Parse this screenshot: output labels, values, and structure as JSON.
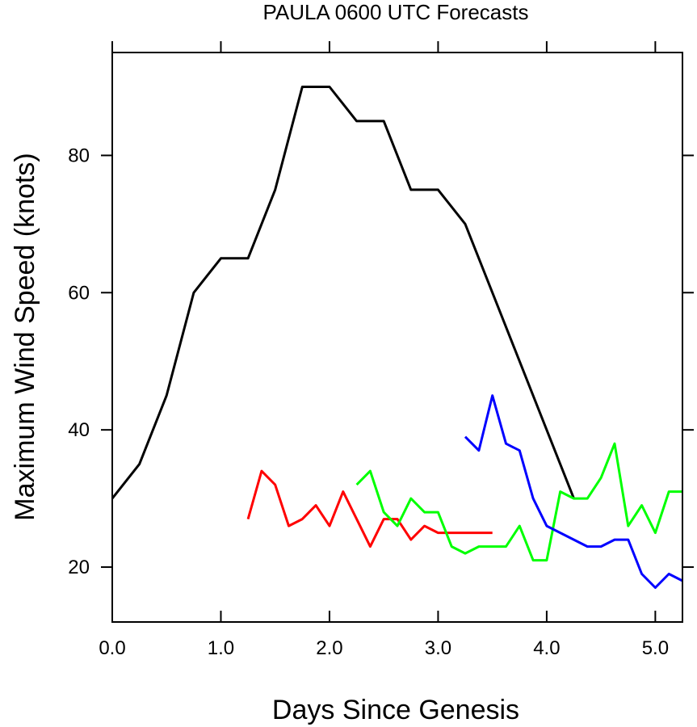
{
  "chart_data": {
    "type": "line",
    "title": "PAULA 0600 UTC Forecasts",
    "xlabel": "Days Since Genesis",
    "ylabel": "Maximum Wind Speed (knots)",
    "xlim": [
      0,
      5.25
    ],
    "ylim": [
      12,
      95
    ],
    "x_ticks": [
      0,
      1,
      2,
      3,
      4,
      5
    ],
    "x_tick_labels": [
      "0.0",
      "1.0",
      "2.0",
      "3.0",
      "4.0",
      "5.0"
    ],
    "y_ticks": [
      20,
      40,
      60,
      80
    ],
    "y_tick_labels": [
      "20",
      "40",
      "60",
      "80"
    ],
    "series": [
      {
        "name": "black",
        "color": "#000000",
        "x": [
          0,
          0.25,
          0.5,
          0.75,
          1.0,
          1.25,
          1.5,
          1.75,
          2.0,
          2.25,
          2.5,
          2.75,
          3.0,
          3.25,
          3.5,
          3.75,
          4.0,
          4.25
        ],
        "y": [
          30,
          35,
          45,
          60,
          65,
          65,
          75,
          90,
          90,
          85,
          85,
          75,
          75,
          70,
          60,
          50,
          40,
          30
        ]
      },
      {
        "name": "red",
        "color": "#ff0000",
        "x": [
          1.25,
          1.375,
          1.5,
          1.625,
          1.75,
          1.875,
          2.0,
          2.125,
          2.25,
          2.375,
          2.5,
          2.625,
          2.75,
          2.875,
          3.0,
          3.125,
          3.25,
          3.375,
          3.5
        ],
        "y": [
          27,
          34,
          32,
          26,
          27,
          29,
          26,
          31,
          27,
          23,
          27,
          27,
          24,
          26,
          25,
          25,
          25,
          25,
          25
        ]
      },
      {
        "name": "green",
        "color": "#00ff00",
        "x": [
          2.25,
          2.375,
          2.5,
          2.625,
          2.75,
          2.875,
          3.0,
          3.125,
          3.25,
          3.375,
          3.5,
          3.625,
          3.75,
          3.875,
          4.0,
          4.125,
          4.25,
          4.375,
          4.5,
          4.625,
          4.75,
          4.875,
          5.0,
          5.125,
          5.25
        ],
        "y": [
          32,
          34,
          28,
          26,
          30,
          28,
          28,
          23,
          22,
          23,
          23,
          23,
          26,
          21,
          21,
          31,
          30,
          30,
          33,
          38,
          26,
          29,
          25,
          31,
          31
        ]
      },
      {
        "name": "blue",
        "color": "#0000ff",
        "x": [
          3.25,
          3.375,
          3.5,
          3.625,
          3.75,
          3.875,
          4.0,
          4.125,
          4.25,
          4.375,
          4.5,
          4.625,
          4.75,
          4.875,
          5.0,
          5.125,
          5.25
        ],
        "y": [
          39,
          37,
          45,
          38,
          37,
          30,
          26,
          25,
          24,
          23,
          23,
          24,
          24,
          19,
          17,
          19,
          18
        ]
      }
    ]
  }
}
